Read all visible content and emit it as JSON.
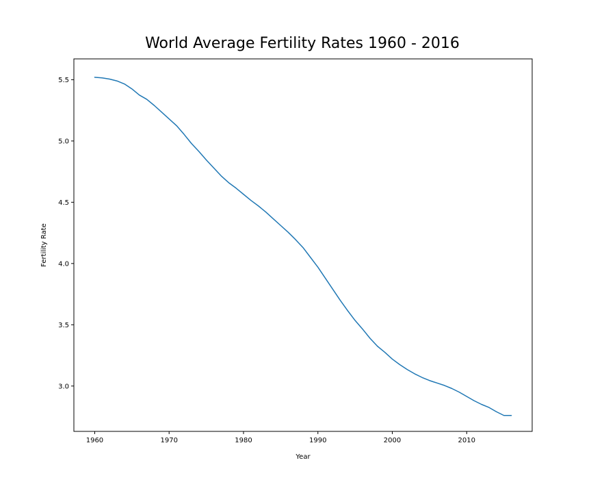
{
  "chart_data": {
    "type": "line",
    "title": "World Average Fertility Rates 1960 - 2016",
    "xlabel": "Year",
    "ylabel": "Fertility Rate",
    "xlim": [
      1957.2,
      2018.8
    ],
    "ylim": [
      2.63,
      5.67
    ],
    "xticks": [
      1960,
      1970,
      1980,
      1990,
      2000,
      2010
    ],
    "yticks": [
      3.0,
      3.5,
      4.0,
      4.5,
      5.0,
      5.5
    ],
    "ytick_labels": [
      "3.0",
      "3.5",
      "4.0",
      "4.5",
      "5.0",
      "5.5"
    ],
    "grid": false,
    "color": "#1f77b4",
    "series": [
      {
        "x": [
          1960,
          1961,
          1962,
          1963,
          1964,
          1965,
          1966,
          1967,
          1968,
          1969,
          1970,
          1971,
          1972,
          1973,
          1974,
          1975,
          1976,
          1977,
          1978,
          1979,
          1980,
          1981,
          1982,
          1983,
          1984,
          1985,
          1986,
          1987,
          1988,
          1989,
          1990,
          1991,
          1992,
          1993,
          1994,
          1995,
          1996,
          1997,
          1998,
          1999,
          2000,
          2001,
          2002,
          2003,
          2004,
          2005,
          2006,
          2007,
          2008,
          2009,
          2010,
          2011,
          2012,
          2013,
          2014,
          2015,
          2016
        ],
        "values": [
          5.52,
          5.515,
          5.505,
          5.49,
          5.465,
          5.425,
          5.375,
          5.34,
          5.29,
          5.235,
          5.18,
          5.125,
          5.055,
          4.98,
          4.915,
          4.845,
          4.78,
          4.715,
          4.66,
          4.615,
          4.565,
          4.515,
          4.47,
          4.42,
          4.365,
          4.31,
          4.255,
          4.195,
          4.13,
          4.05,
          3.97,
          3.88,
          3.79,
          3.7,
          3.615,
          3.535,
          3.465,
          3.39,
          3.325,
          3.275,
          3.22,
          3.175,
          3.135,
          3.1,
          3.07,
          3.045,
          3.025,
          3.005,
          2.98,
          2.95,
          2.915,
          2.88,
          2.85,
          2.825,
          2.79,
          2.76,
          2.76
        ]
      }
    ]
  }
}
